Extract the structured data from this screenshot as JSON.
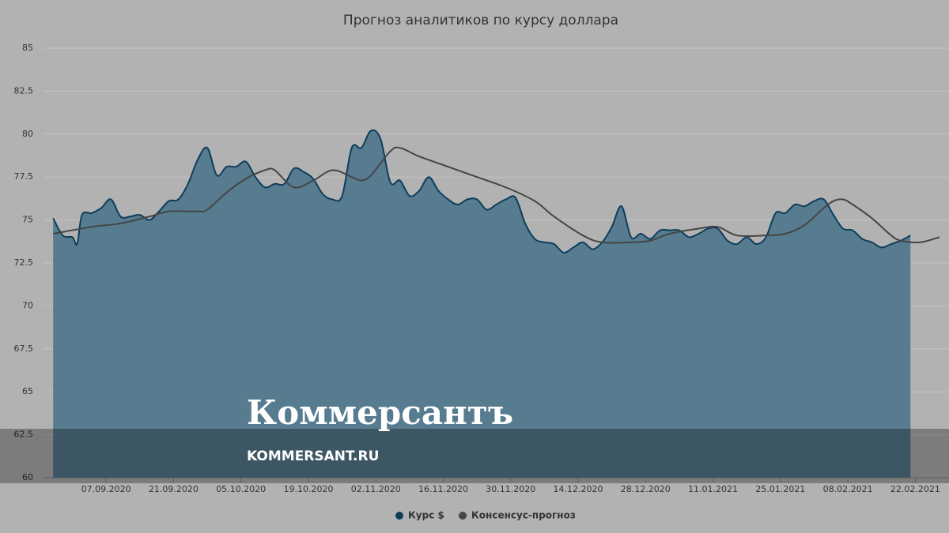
{
  "chart_data": {
    "type": "area",
    "title": "Прогноз аналитиков по курсу доллара",
    "xlim": [
      "2020-08-25",
      "2021-03-01"
    ],
    "xticks": [
      {
        "value": "2020-09-07",
        "label": "07.09.2020"
      },
      {
        "value": "2020-09-21",
        "label": "21.09.2020"
      },
      {
        "value": "2020-10-05",
        "label": "05.10.2020"
      },
      {
        "value": "2020-10-19",
        "label": "19.10.2020"
      },
      {
        "value": "2020-11-02",
        "label": "02.11.2020"
      },
      {
        "value": "2020-11-16",
        "label": "16.11.2020"
      },
      {
        "value": "2020-11-30",
        "label": "30.11.2020"
      },
      {
        "value": "2020-12-14",
        "label": "14.12.2020"
      },
      {
        "value": "2020-12-28",
        "label": "28.12.2020"
      },
      {
        "value": "2021-01-11",
        "label": "11.01.2021"
      },
      {
        "value": "2021-01-25",
        "label": "25.01.2021"
      },
      {
        "value": "2021-02-08",
        "label": "08.02.2021"
      },
      {
        "value": "2021-02-22",
        "label": "22.02.2021"
      }
    ],
    "ylim": [
      60,
      85
    ],
    "yticks": [
      60,
      62.5,
      65,
      67.5,
      70,
      72.5,
      75,
      77.5,
      80,
      82.5,
      85
    ],
    "grid": true,
    "series": [
      {
        "name": "Курс $",
        "color": "#0e3d5c",
        "fill": "#577c90",
        "kind": "area",
        "x": [
          "2020-08-27",
          "2020-08-29",
          "2020-08-31",
          "2020-09-01",
          "2020-09-02",
          "2020-09-04",
          "2020-09-06",
          "2020-09-08",
          "2020-09-10",
          "2020-09-12",
          "2020-09-14",
          "2020-09-16",
          "2020-09-18",
          "2020-09-20",
          "2020-09-22",
          "2020-09-24",
          "2020-09-26",
          "2020-09-28",
          "2020-09-30",
          "2020-10-02",
          "2020-10-04",
          "2020-10-06",
          "2020-10-08",
          "2020-10-10",
          "2020-10-12",
          "2020-10-14",
          "2020-10-16",
          "2020-10-18",
          "2020-10-20",
          "2020-10-22",
          "2020-10-24",
          "2020-10-26",
          "2020-10-28",
          "2020-10-30",
          "2020-11-01",
          "2020-11-03",
          "2020-11-05",
          "2020-11-07",
          "2020-11-09",
          "2020-11-11",
          "2020-11-13",
          "2020-11-15",
          "2020-11-17",
          "2020-11-19",
          "2020-11-21",
          "2020-11-23",
          "2020-11-25",
          "2020-11-27",
          "2020-11-29",
          "2020-12-01",
          "2020-12-03",
          "2020-12-05",
          "2020-12-07",
          "2020-12-09",
          "2020-12-11",
          "2020-12-13",
          "2020-12-15",
          "2020-12-17",
          "2020-12-19",
          "2020-12-21",
          "2020-12-23",
          "2020-12-25",
          "2020-12-27",
          "2020-12-29",
          "2020-12-31",
          "2021-01-02",
          "2021-01-04",
          "2021-01-06",
          "2021-01-08",
          "2021-01-10",
          "2021-01-12",
          "2021-01-14",
          "2021-01-16",
          "2021-01-18",
          "2021-01-20",
          "2021-01-22",
          "2021-01-24",
          "2021-01-26",
          "2021-01-28",
          "2021-01-30",
          "2021-02-01",
          "2021-02-03",
          "2021-02-05",
          "2021-02-07",
          "2021-02-09",
          "2021-02-11",
          "2021-02-13",
          "2021-02-15",
          "2021-02-17",
          "2021-02-19",
          "2021-02-21"
        ],
        "values": [
          75.1,
          74.1,
          74.0,
          73.6,
          75.3,
          75.4,
          75.7,
          76.2,
          75.2,
          75.2,
          75.3,
          75.0,
          75.5,
          76.1,
          76.2,
          77.1,
          78.5,
          79.2,
          77.6,
          78.1,
          78.1,
          78.4,
          77.5,
          76.9,
          77.1,
          77.1,
          78.0,
          77.8,
          77.4,
          76.5,
          76.2,
          76.4,
          79.2,
          79.2,
          80.2,
          79.7,
          77.2,
          77.3,
          76.4,
          76.7,
          77.5,
          76.7,
          76.2,
          75.9,
          76.2,
          76.2,
          75.6,
          75.9,
          76.2,
          76.3,
          74.8,
          73.9,
          73.7,
          73.6,
          73.1,
          73.4,
          73.7,
          73.3,
          73.7,
          74.6,
          75.8,
          74.0,
          74.2,
          73.9,
          74.4,
          74.4,
          74.4,
          74.0,
          74.2,
          74.5,
          74.5,
          73.8,
          73.6,
          74.0,
          73.6,
          74.0,
          75.4,
          75.4,
          75.9,
          75.8,
          76.1,
          76.2,
          75.3,
          74.5,
          74.4,
          73.9,
          73.7,
          73.4,
          73.6,
          73.8,
          74.1
        ]
      },
      {
        "name": "Консенсус-прогноз",
        "color": "#454545",
        "kind": "line",
        "x": [
          "2020-08-27",
          "2020-09-04",
          "2020-09-10",
          "2020-09-16",
          "2020-09-20",
          "2020-09-26",
          "2020-09-28",
          "2020-10-02",
          "2020-10-06",
          "2020-10-10",
          "2020-10-12",
          "2020-10-16",
          "2020-10-20",
          "2020-10-24",
          "2020-10-28",
          "2020-10-30",
          "2020-11-01",
          "2020-11-05",
          "2020-11-07",
          "2020-11-11",
          "2020-11-17",
          "2020-11-23",
          "2020-11-29",
          "2020-12-05",
          "2020-12-09",
          "2020-12-15",
          "2020-12-19",
          "2020-12-25",
          "2020-12-29",
          "2021-01-02",
          "2021-01-08",
          "2021-01-12",
          "2021-01-16",
          "2021-01-22",
          "2021-01-26",
          "2021-01-30",
          "2021-02-03",
          "2021-02-05",
          "2021-02-07",
          "2021-02-09",
          "2021-02-13",
          "2021-02-17",
          "2021-02-19",
          "2021-02-23",
          "2021-02-27"
        ],
        "values": [
          74.2,
          74.6,
          74.8,
          75.2,
          75.5,
          75.5,
          75.6,
          76.6,
          77.4,
          77.9,
          77.9,
          76.9,
          77.3,
          77.9,
          77.5,
          77.3,
          77.6,
          79.0,
          79.2,
          78.7,
          78.1,
          77.5,
          76.9,
          76.1,
          75.2,
          74.1,
          73.7,
          73.7,
          73.8,
          74.2,
          74.5,
          74.6,
          74.1,
          74.1,
          74.2,
          74.7,
          75.7,
          76.1,
          76.2,
          75.9,
          75.1,
          74.1,
          73.8,
          73.7,
          74.0
        ]
      }
    ]
  },
  "watermark": {
    "logo": "Коммерсантъ",
    "url": "KOMMERSANT.RU"
  }
}
